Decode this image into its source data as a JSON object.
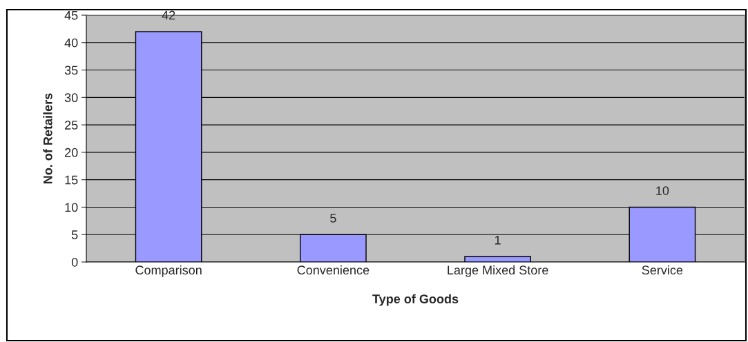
{
  "chart_data": {
    "type": "bar",
    "xlabel": "Type of Goods",
    "ylabel": "No. of Retailers",
    "categories": [
      "Comparison",
      "Convenience",
      "Large Mixed Store",
      "Service"
    ],
    "values": [
      42,
      5,
      1,
      10
    ],
    "color": "#9999ff",
    "ylim": [
      0,
      45
    ],
    "yticks": [
      0,
      5,
      10,
      15,
      20,
      25,
      30,
      35,
      40,
      45
    ],
    "grid": "y",
    "data_labels": true
  }
}
